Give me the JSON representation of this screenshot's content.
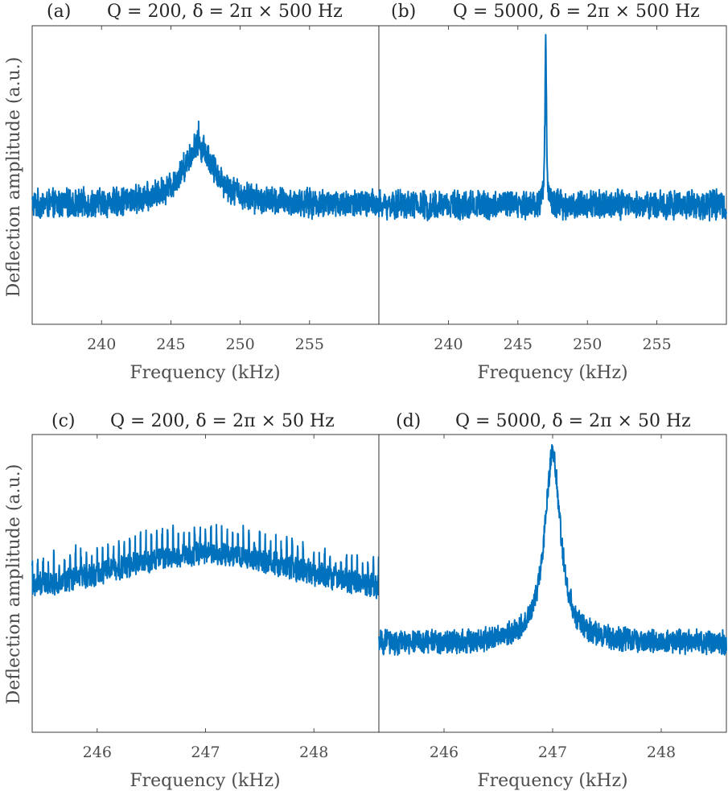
{
  "ylabel": "Deflection amplitude (a.u.)",
  "line_color": "#0072bd",
  "chart_data": [
    {
      "id": "a",
      "type": "line",
      "panel_label": "(a)",
      "title": "Q = 200, δ = 2π × 500 Hz",
      "xlabel": "Frequency (kHz)",
      "xlim": [
        235,
        260
      ],
      "ylim": [
        0,
        1
      ],
      "xticks": [
        240,
        245,
        250,
        255
      ],
      "center_khz": 247,
      "baseline": 0.4,
      "peak_height": 0.6,
      "lorentz_halfwidth_khz": 1.4,
      "noise_amplitude": 0.055,
      "comb_spacing_khz": 0.5,
      "spike_at_khz": [
        247
      ],
      "spike_height": 0.68
    },
    {
      "id": "b",
      "type": "line",
      "panel_label": "(b)",
      "title": "Q = 5000, δ = 2π × 500 Hz",
      "xlabel": "Frequency (kHz)",
      "xlim": [
        235,
        260
      ],
      "ylim": [
        0,
        1
      ],
      "xticks": [
        240,
        245,
        250,
        255
      ],
      "center_khz": 247,
      "baseline": 0.4,
      "peak_height": 0.97,
      "lorentz_halfwidth_khz": 0.06,
      "noise_amplitude": 0.055,
      "comb_spacing_khz": 0.5,
      "spike_at_khz": [
        247
      ],
      "spike_height": 0.97
    },
    {
      "id": "c",
      "type": "line",
      "panel_label": "(c)",
      "title": "Q = 200, δ = 2π × 50 Hz",
      "xlabel": "Frequency (kHz)",
      "xlim": [
        245.4,
        248.6
      ],
      "ylim": [
        0,
        1
      ],
      "xticks": [
        246,
        247,
        248
      ],
      "center_khz": 247,
      "baseline": 0.42,
      "peak_height": 0.6,
      "lorentz_halfwidth_khz": 1.3,
      "noise_amplitude": 0.045,
      "comb_spacing_khz": 0.05,
      "comb_spike_extra": 0.07,
      "spike_at_khz": [],
      "spike_height": 0
    },
    {
      "id": "d",
      "type": "line",
      "panel_label": "(d)",
      "title": "Q = 5000, δ = 2π × 50 Hz",
      "xlabel": "Frequency (kHz)",
      "xlim": [
        245.4,
        248.6
      ],
      "ylim": [
        0,
        1
      ],
      "xticks": [
        246,
        247,
        248
      ],
      "center_khz": 247,
      "baseline": 0.3,
      "peak_height": 0.93,
      "lorentz_halfwidth_khz": 0.09,
      "noise_amplitude": 0.045,
      "comb_spacing_khz": 0.05,
      "spike_at_khz": [
        247
      ],
      "spike_height": 0.96
    }
  ]
}
